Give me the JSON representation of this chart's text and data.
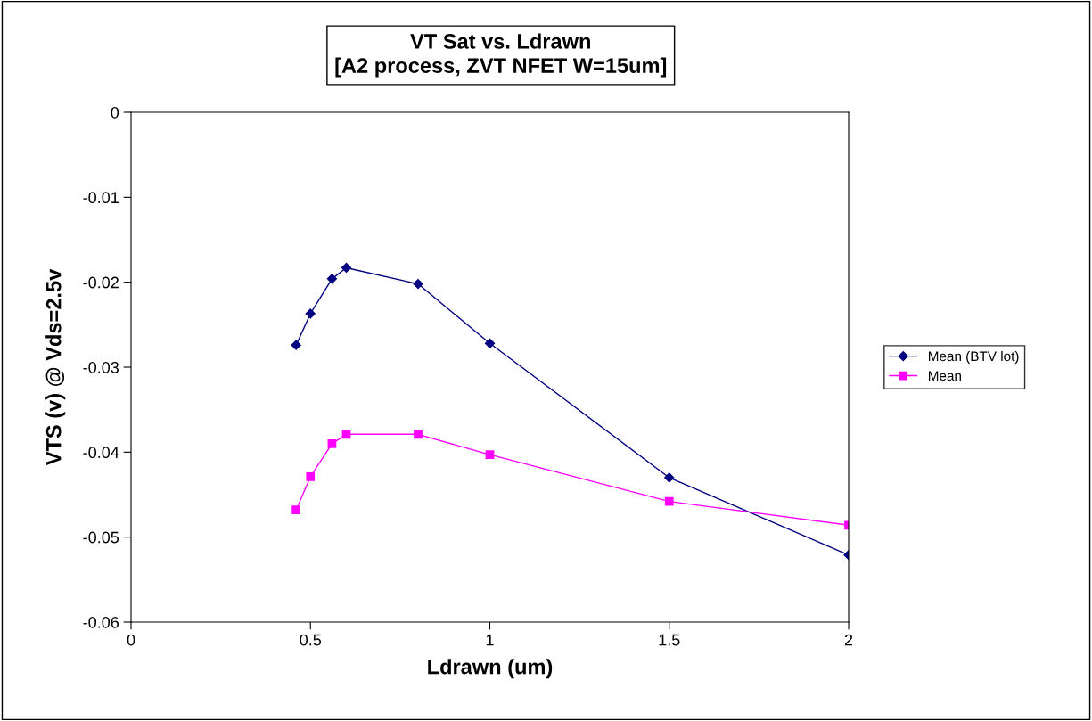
{
  "chart_data": {
    "type": "line",
    "title": "VT Sat vs. Ldrawn\n[A2 process, ZVT NFET W=15um]",
    "xlabel": "Ldrawn (um)",
    "ylabel": "VTS (v) @ Vds=2.5v",
    "x": [
      0.46,
      0.5,
      0.56,
      0.6,
      0.8,
      1,
      1.5,
      2
    ],
    "series": [
      {
        "name": "Mean (BTV lot)",
        "color": "#000080",
        "marker": "diamond",
        "values": [
          -0.0274,
          -0.0237,
          -0.0196,
          -0.0183,
          -0.0202,
          -0.0272,
          -0.043,
          -0.0521
        ]
      },
      {
        "name": "Mean",
        "color": "#ff00ff",
        "marker": "square",
        "values": [
          -0.0468,
          -0.0429,
          -0.039,
          -0.0379,
          -0.0379,
          -0.0403,
          -0.0458,
          -0.0486
        ]
      }
    ],
    "xlim": [
      0,
      2
    ],
    "xticks": [
      0,
      0.5,
      1,
      1.5,
      2
    ],
    "ylim": [
      -0.06,
      0
    ],
    "yticks": [
      -0.06,
      -0.05,
      -0.04,
      -0.03,
      -0.02,
      -0.01,
      0
    ],
    "grid": false,
    "legend": "right"
  }
}
